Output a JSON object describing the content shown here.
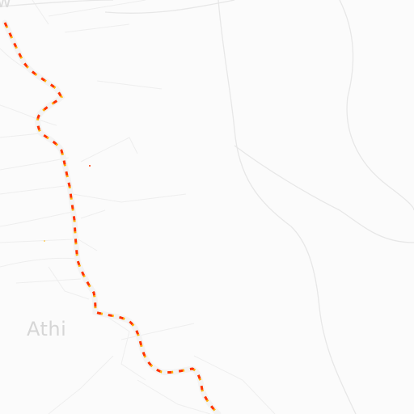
{
  "map": {
    "route": {
      "color": "#ff3300",
      "accent_color": "#ffb000",
      "casing_color": "#f0f0f0",
      "style": "dashed"
    },
    "labels": {
      "top_partial": "w",
      "town": "Athi"
    },
    "colors": {
      "background": "#fbfbfb",
      "road": "#ececec",
      "road_minor": "#f1f1f1",
      "label": "#d6d6d6"
    }
  }
}
